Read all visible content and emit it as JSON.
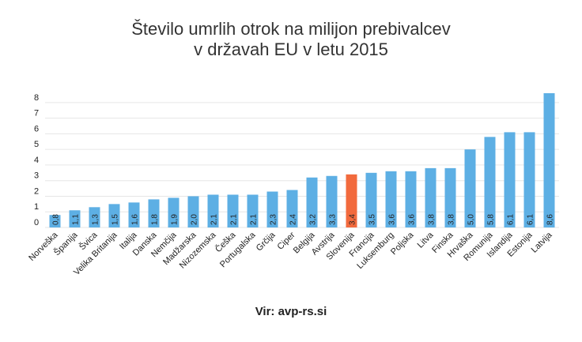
{
  "chart_data": {
    "type": "bar",
    "title": [
      "Število umrlih otrok na milijon prebivalcev",
      "v državah EU v letu 2015"
    ],
    "categories": [
      "Norveška",
      "Španija",
      "Švica",
      "Velika Britanija",
      "Italija",
      "Danska",
      "Nemčija",
      "Madžarska",
      "Nizozemska",
      "Češka",
      "Portugalska",
      "Grčija",
      "Ciper",
      "Belgija",
      "Avstrija",
      "Slovenija",
      "Francija",
      "Luksemburg",
      "Poljska",
      "Litva",
      "Finska",
      "Hrvaška",
      "Romunija",
      "Islandija",
      "Estonija",
      "Latvija"
    ],
    "values": [
      0.8,
      1.1,
      1.3,
      1.5,
      1.6,
      1.8,
      1.9,
      2.0,
      2.1,
      2.1,
      2.1,
      2.3,
      2.4,
      3.2,
      3.3,
      3.4,
      3.5,
      3.6,
      3.6,
      3.8,
      3.8,
      5.0,
      5.8,
      6.1,
      6.1,
      8.6
    ],
    "value_labels": [
      "0,8",
      "1,1",
      "1,3",
      "1,5",
      "1,6",
      "1,8",
      "1,9",
      "2,0",
      "2,1",
      "2,1",
      "2,1",
      "2,3",
      "2,4",
      "3,2",
      "3,3",
      "3,4",
      "3,5",
      "3,6",
      "3,6",
      "3,8",
      "3,8",
      "5,0",
      "5,8",
      "6,1",
      "6,1",
      "8,6"
    ],
    "highlight": "Slovenija",
    "ylim": [
      0,
      8.6
    ],
    "yticks": [
      "0",
      "1",
      "2",
      "3",
      "4",
      "5",
      "6",
      "7",
      "8"
    ],
    "grid": true,
    "colors": {
      "bar": "#5dafe4",
      "highlight": "#f26a3d",
      "grid": "#e6e6e6"
    },
    "source": "Vir: avp-rs.si"
  }
}
